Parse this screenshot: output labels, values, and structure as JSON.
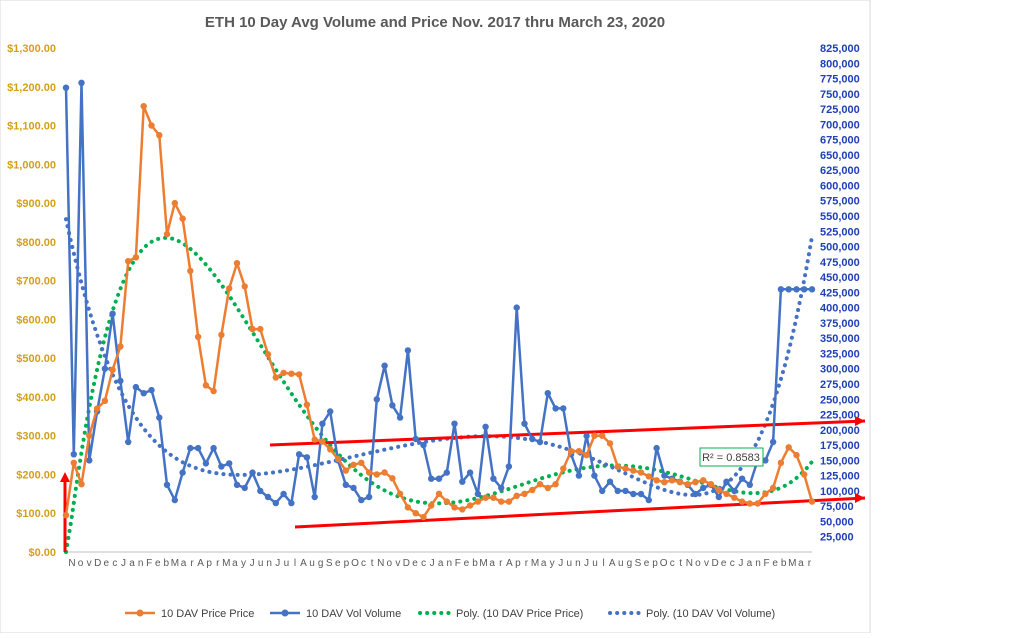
{
  "chart_data": {
    "type": "line",
    "title": "ETH 10 Day Avg Volume and Price Nov. 2017 thru March 23, 2020",
    "y_left": {
      "ticks": [
        "$0.00",
        "$100.00",
        "$200.00",
        "$300.00",
        "$400.00",
        "$500.00",
        "$600.00",
        "$700.00",
        "$800.00",
        "$900.00",
        "$1,000.00",
        "$1,100.00",
        "$1,200.00",
        "$1,300.00"
      ],
      "range": [
        0,
        1300
      ],
      "color": "#d4a017"
    },
    "y_right": {
      "ticks": [
        "25,000",
        "50,000",
        "75,000",
        "100,000",
        "125,000",
        "150,000",
        "175,000",
        "200,000",
        "225,000",
        "250,000",
        "275,000",
        "300,000",
        "325,000",
        "350,000",
        "375,000",
        "400,000",
        "425,000",
        "450,000",
        "475,000",
        "500,000",
        "525,000",
        "550,000",
        "575,000",
        "600,000",
        "625,000",
        "650,000",
        "675,000",
        "700,000",
        "725,000",
        "750,000",
        "775,000",
        "800,000",
        "825,000"
      ],
      "range": [
        0,
        825000
      ],
      "color": "#1f3fb5"
    },
    "price_series": {
      "name": "10 DAV Price Price",
      "color": "#ed7d31",
      "values": [
        95,
        230,
        175,
        300,
        370,
        390,
        470,
        530,
        750,
        760,
        1150,
        1100,
        1075,
        820,
        900,
        860,
        725,
        555,
        430,
        415,
        560,
        680,
        745,
        685,
        575,
        575,
        510,
        450,
        462,
        460,
        458,
        380,
        290,
        285,
        265,
        240,
        210,
        225,
        230,
        205,
        200,
        205,
        190,
        150,
        115,
        100,
        90,
        120,
        150,
        130,
        115,
        110,
        120,
        130,
        140,
        140,
        130,
        130,
        145,
        150,
        160,
        175,
        165,
        175,
        215,
        260,
        260,
        250,
        300,
        300,
        280,
        220,
        215,
        210,
        205,
        195,
        185,
        180,
        185,
        180,
        175,
        180,
        185,
        175,
        160,
        150,
        140,
        130,
        125,
        125,
        150,
        165,
        230,
        270,
        250,
        200,
        130
      ],
      "trend_name": "Poly. (10 DAV Price Price)",
      "trend_color": "#00b050"
    },
    "volume_series": {
      "name": "10 DAV Vol Volume",
      "color": "#4472c4",
      "values": [
        760000,
        160000,
        768000,
        150000,
        230000,
        300000,
        390000,
        280000,
        180000,
        270000,
        260000,
        265000,
        220000,
        110000,
        85000,
        130000,
        170000,
        170000,
        145000,
        170000,
        140000,
        145000,
        110000,
        105000,
        130000,
        100000,
        90000,
        80000,
        95000,
        80000,
        160000,
        155000,
        90000,
        210000,
        230000,
        150000,
        110000,
        105000,
        85000,
        90000,
        250000,
        305000,
        240000,
        220000,
        330000,
        185000,
        175000,
        120000,
        120000,
        130000,
        210000,
        115000,
        130000,
        95000,
        205000,
        120000,
        105000,
        140000,
        400000,
        210000,
        185000,
        180000,
        260000,
        235000,
        235000,
        160000,
        125000,
        190000,
        125000,
        100000,
        115000,
        100000,
        100000,
        95000,
        95000,
        85000,
        170000,
        125000,
        120000,
        115000,
        110000,
        95000,
        105000,
        110000,
        90000,
        115000,
        100000,
        120000,
        110000,
        150000,
        150000,
        180000,
        430000,
        430000,
        430000,
        430000,
        430000
      ],
      "trend_name": "Poly. (10 DAV Vol Volume)",
      "trend_color": "#4472c4"
    },
    "x_tick_labels": [
      "N",
      "o",
      "v",
      "D",
      "e",
      "c",
      "J",
      "a",
      "n",
      "F",
      "e",
      "b",
      "M",
      "a",
      "r",
      "A",
      "p",
      "r",
      "M",
      "a",
      "y",
      "J",
      "u",
      "n",
      "J",
      "u",
      "l",
      "A",
      "u",
      "g",
      "S",
      "e",
      "p",
      "O",
      "c",
      "t",
      "N",
      "o",
      "v",
      "D",
      "e",
      "c",
      "J",
      "a",
      "n",
      "F",
      "e",
      "b",
      "M",
      "a",
      "r",
      "A",
      "p",
      "r",
      "M",
      "a",
      "y",
      "J",
      "u",
      "n",
      "J",
      "u",
      "l",
      "A",
      "u",
      "g",
      "S",
      "e",
      "p",
      "O",
      "c",
      "t",
      "N",
      "o",
      "v",
      "D",
      "e",
      "c",
      "J",
      "a",
      "n",
      "F",
      "e",
      "b",
      "M",
      "a",
      "r"
    ],
    "annotation": "R² = 0.8583",
    "legend_position": "bottom",
    "grid": false
  }
}
